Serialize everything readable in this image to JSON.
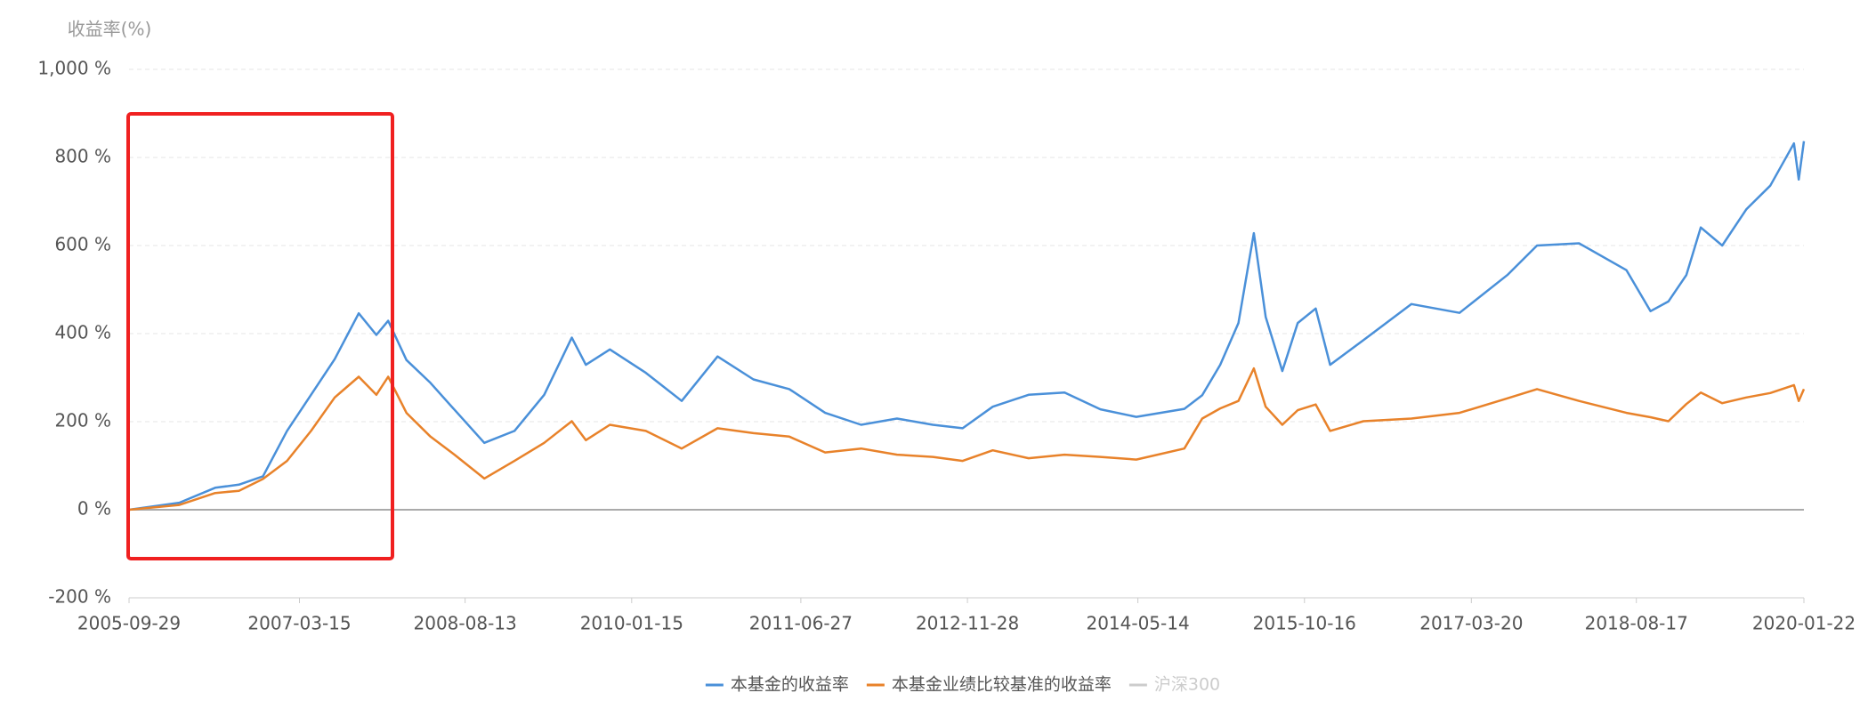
{
  "chart_data": {
    "type": "line",
    "y_axis_label": "收益率(%)",
    "x": [
      "2005-09-29",
      "2006-03-05",
      "2006-06-25",
      "2006-09-07",
      "2006-11-21",
      "2007-02-04",
      "2007-04-20",
      "2007-07-03",
      "2007-09-16",
      "2007-11-10",
      "2007-12-17",
      "2008-02-12",
      "2008-04-27",
      "2008-07-11",
      "2008-10-12",
      "2009-01-14",
      "2009-04-17",
      "2009-07-12",
      "2009-08-25",
      "2009-11-08",
      "2010-02-28",
      "2010-06-20",
      "2010-10-10",
      "2011-01-30",
      "2011-05-22",
      "2011-09-11",
      "2012-01-01",
      "2012-04-22",
      "2012-08-12",
      "2012-11-13",
      "2013-02-15",
      "2013-06-07",
      "2013-09-27",
      "2014-01-17",
      "2014-05-09",
      "2014-10-06",
      "2014-12-01",
      "2015-01-26",
      "2015-03-24",
      "2015-05-11",
      "2015-06-17",
      "2015-08-08",
      "2015-09-25",
      "2015-11-20",
      "2016-01-04",
      "2016-04-17",
      "2016-09-14",
      "2017-02-11",
      "2017-07-10",
      "2017-10-11",
      "2018-02-19",
      "2018-07-17",
      "2018-09-30",
      "2018-11-25",
      "2019-01-20",
      "2019-03-06",
      "2019-05-12",
      "2019-07-26",
      "2019-10-09",
      "2019-12-22",
      "2020-01-06",
      "2020-01-22"
    ],
    "series": [
      {
        "name": "本基金的收益率",
        "color": "#4a90d9",
        "values": [
          0,
          16,
          50,
          57,
          76,
          179,
          261,
          342,
          446,
          397,
          429,
          340,
          288,
          227,
          152,
          179,
          261,
          391,
          329,
          364,
          311,
          247,
          348,
          296,
          274,
          220,
          193,
          207,
          193,
          185,
          234,
          261,
          266,
          228,
          211,
          229,
          260,
          329,
          424,
          628,
          438,
          315,
          424,
          457,
          329,
          385,
          467,
          447,
          533,
          600,
          605,
          544,
          451,
          473,
          533,
          641,
          600,
          682,
          736,
          832,
          750,
          837
        ]
      },
      {
        "name": "本基金业绩比较基准的收益率",
        "color": "#e8822a",
        "values": [
          0,
          11,
          38,
          43,
          70,
          111,
          179,
          255,
          302,
          261,
          302,
          220,
          166,
          125,
          71,
          111,
          152,
          201,
          158,
          193,
          179,
          139,
          185,
          174,
          166,
          130,
          139,
          125,
          120,
          111,
          135,
          117,
          125,
          120,
          114,
          139,
          207,
          230,
          247,
          321,
          234,
          193,
          226,
          239,
          179,
          201,
          207,
          220,
          253,
          274,
          247,
          220,
          210,
          201,
          240,
          266,
          242,
          255,
          265,
          283,
          247,
          274
        ]
      }
    ],
    "legend_inactive": {
      "name": "沪深300",
      "color": "#cccccc"
    },
    "xlim": [
      "2005-09-29",
      "2020-01-22"
    ],
    "xticks": [
      "2005-09-29",
      "2007-03-15",
      "2008-08-13",
      "2010-01-15",
      "2011-06-27",
      "2012-11-28",
      "2014-05-14",
      "2015-10-16",
      "2017-03-20",
      "2018-08-17",
      "2020-01-22"
    ],
    "ylim": [
      -200,
      1000
    ],
    "yticks": [
      {
        "value": -200,
        "label": "-200 %"
      },
      {
        "value": 0,
        "label": "0 %"
      },
      {
        "value": 200,
        "label": "200 %"
      },
      {
        "value": 400,
        "label": "400 %"
      },
      {
        "value": 600,
        "label": "600 %"
      },
      {
        "value": 800,
        "label": "800 %"
      },
      {
        "value": 1000,
        "label": "1,000 %"
      }
    ],
    "grid": true
  }
}
